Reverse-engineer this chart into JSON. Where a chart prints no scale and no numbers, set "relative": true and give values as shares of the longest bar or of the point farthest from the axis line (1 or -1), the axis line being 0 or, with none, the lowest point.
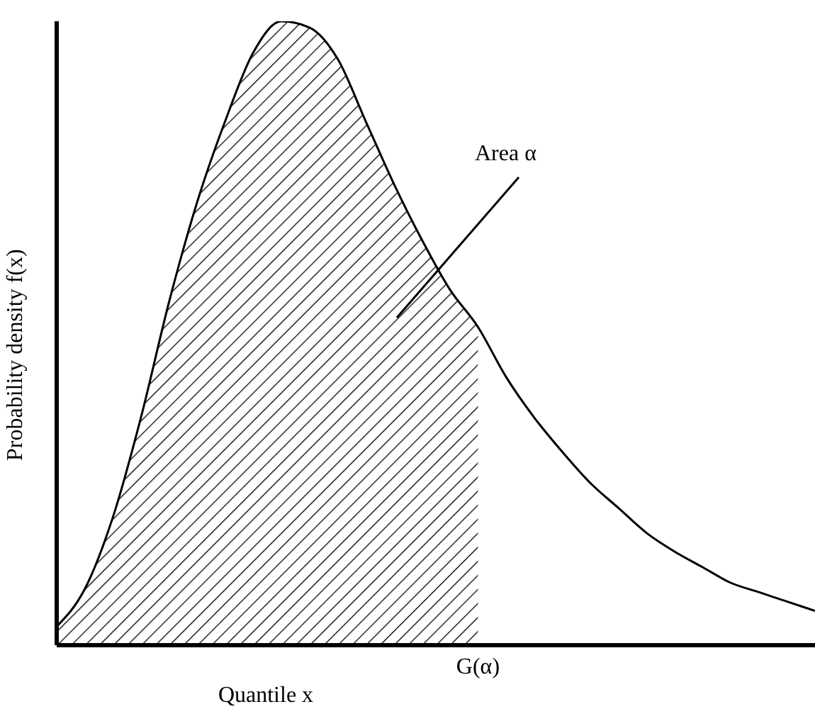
{
  "chart_data": {
    "type": "line",
    "relative": true,
    "xlabel": "Quantile x",
    "ylabel": "Probability density f(x)",
    "grid": false,
    "legend": false,
    "marker": "none",
    "categories": [
      null,
      null,
      null,
      null,
      null,
      null,
      null,
      null,
      null,
      null,
      null,
      null,
      null,
      null,
      null,
      null,
      null,
      null,
      null,
      null,
      null,
      null,
      null,
      null,
      null,
      null,
      null,
      null
    ],
    "series": [
      {
        "type": "area",
        "color": "#000000",
        "values": [
          0.03,
          0.09,
          0.205,
          0.365,
          0.55,
          0.71,
          0.84,
          0.95,
          1.0,
          0.99,
          0.94,
          0.84,
          0.74,
          0.65,
          0.57,
          0.51,
          null,
          null,
          null,
          null,
          null,
          null,
          null,
          null,
          null,
          null,
          null,
          null
        ]
      },
      {
        "color": "#000000",
        "values": [
          0.03,
          0.09,
          0.205,
          0.365,
          0.55,
          0.71,
          0.84,
          0.95,
          1.0,
          0.99,
          0.94,
          0.84,
          0.74,
          0.65,
          0.57,
          0.51,
          0.43,
          0.365,
          0.31,
          0.26,
          0.22,
          0.18,
          0.15,
          0.125,
          0.1,
          0.085,
          0.07,
          0.055
        ]
      }
    ],
    "annotations": [
      "Area α",
      "G(α)"
    ]
  }
}
